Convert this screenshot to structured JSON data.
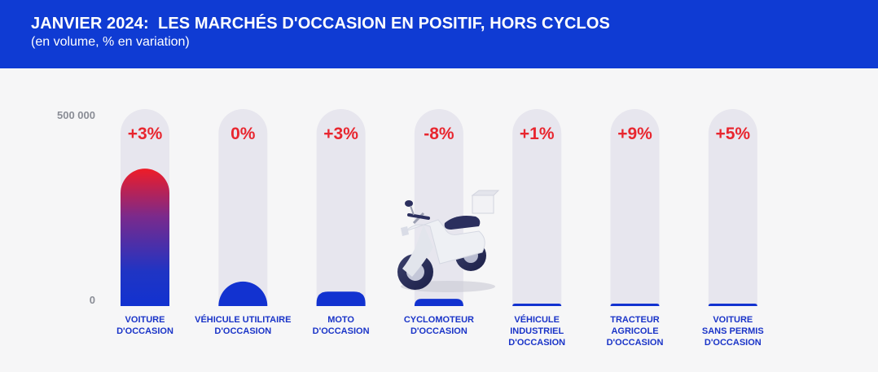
{
  "header": {
    "title": "JANVIER 2024:  LES MARCHÉS D'OCCASION EN POSITIF, HORS CYCLOS",
    "subtitle": "(en volume, % en variation)"
  },
  "colors": {
    "header_bg": "#0f3bd3",
    "bar_blue": "#1232d0",
    "bar_red": "#ee1c27",
    "track": "#e7e6ee",
    "change_label": "#e8262f",
    "category_label": "#1a34c8"
  },
  "chart_data": {
    "type": "bar",
    "y_tick_labels": [
      "500 000",
      "0"
    ],
    "ylim": [
      0,
      500000
    ],
    "categories": [
      [
        "VOITURE",
        "D'OCCASION"
      ],
      [
        "VÉHICULE UTILITAIRE",
        "D'OCCASION"
      ],
      [
        "MOTO",
        "D'OCCASION"
      ],
      [
        "CYCLOMOTEUR",
        "D'OCCASION"
      ],
      [
        "VÉHICULE",
        "INDUSTRIEL",
        "D'OCCASION"
      ],
      [
        "TRACTEUR",
        "AGRICOLE",
        "D'OCCASION"
      ],
      [
        "VOITURE",
        "SANS PERMIS",
        "D'OCCASION"
      ]
    ],
    "values": [
      420000,
      75000,
      44000,
      22000,
      7000,
      7000,
      3500
    ],
    "change_labels": [
      "+3%",
      "0%",
      "+3%",
      "-8%",
      "+1%",
      "+9%",
      "+5%"
    ],
    "grid": false,
    "illustration": "scooter-icon"
  }
}
